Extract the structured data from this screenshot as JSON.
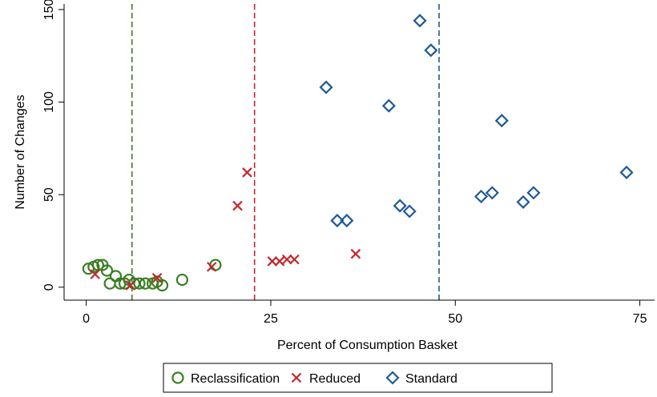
{
  "chart_data": {
    "type": "scatter",
    "title": "",
    "xlabel": "Percent of Consumption Basket",
    "ylabel": "Number of Changes",
    "xlim": [
      -3,
      77
    ],
    "ylim": [
      -7,
      153
    ],
    "xticks": [
      0,
      25,
      50,
      75
    ],
    "yticks": [
      0,
      50,
      100,
      150
    ],
    "grid": false,
    "legend_position": "bottom",
    "reference_lines": [
      {
        "x": 6.2,
        "color": "#3a7d22"
      },
      {
        "x": 22.8,
        "color": "#c0282f"
      },
      {
        "x": 47.8,
        "color": "#1f5a96"
      }
    ],
    "series": [
      {
        "name": "Reclassification",
        "marker": "circle",
        "color": "#3a7d22",
        "points": [
          [
            0.3,
            10
          ],
          [
            1.0,
            11
          ],
          [
            1.6,
            12
          ],
          [
            2.2,
            12
          ],
          [
            2.8,
            9
          ],
          [
            3.2,
            2
          ],
          [
            4.0,
            6
          ],
          [
            4.6,
            2
          ],
          [
            5.2,
            2
          ],
          [
            5.8,
            4
          ],
          [
            6.5,
            2
          ],
          [
            7.2,
            2
          ],
          [
            8.0,
            2
          ],
          [
            9.0,
            2
          ],
          [
            9.6,
            3
          ],
          [
            10.3,
            1
          ],
          [
            13.0,
            4
          ],
          [
            17.5,
            12
          ]
        ]
      },
      {
        "name": "Reduced",
        "marker": "x",
        "color": "#c0282f",
        "points": [
          [
            1.2,
            7
          ],
          [
            6.0,
            1
          ],
          [
            9.6,
            5
          ],
          [
            17.0,
            11
          ],
          [
            20.5,
            44
          ],
          [
            21.8,
            62
          ],
          [
            25.2,
            14
          ],
          [
            26.2,
            14
          ],
          [
            27.2,
            15
          ],
          [
            28.2,
            15
          ],
          [
            36.5,
            18
          ]
        ]
      },
      {
        "name": "Standard",
        "marker": "diamond",
        "color": "#1f5a96",
        "points": [
          [
            32.5,
            108
          ],
          [
            34.0,
            36
          ],
          [
            35.3,
            36
          ],
          [
            41.0,
            98
          ],
          [
            42.5,
            44
          ],
          [
            43.8,
            41
          ],
          [
            45.2,
            144
          ],
          [
            46.7,
            128
          ],
          [
            53.5,
            49
          ],
          [
            55.0,
            51
          ],
          [
            56.3,
            90
          ],
          [
            59.2,
            46
          ],
          [
            60.6,
            51
          ],
          [
            73.2,
            62
          ]
        ]
      }
    ]
  }
}
